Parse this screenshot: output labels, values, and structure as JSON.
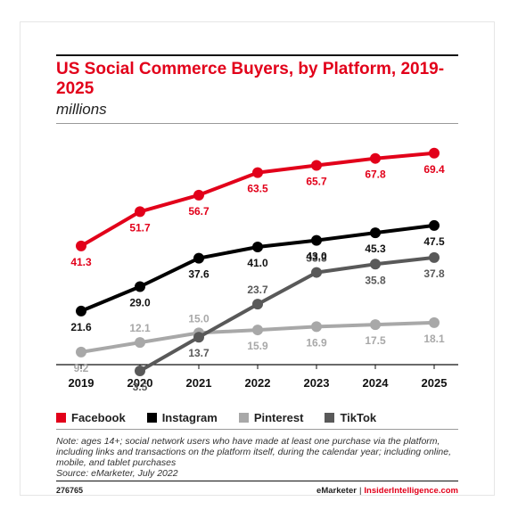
{
  "title": "US Social Commerce Buyers, by Platform, 2019-2025",
  "subtitle": "millions",
  "note": "Note: ages 14+; social network users who have made at least one purchase via the platform, including links and transactions on the platform itself, during the calendar year; including online, mobile, and tablet purchases",
  "source": "Source: eMarketer, July 2022",
  "chart_id": "276765",
  "brand": {
    "emarketer": "eMarketer",
    "separator": "|",
    "insider": "InsiderIntelligence.com"
  },
  "colors": {
    "facebook": "#e2001a",
    "instagram": "#000000",
    "pinterest": "#a8a8a8",
    "tiktok": "#595959"
  },
  "chart_data": {
    "type": "line",
    "title": "US Social Commerce Buyers, by Platform, 2019-2025",
    "subtitle": "millions",
    "x": [
      "2019",
      "2020",
      "2021",
      "2022",
      "2023",
      "2024",
      "2025"
    ],
    "ylim": [
      0,
      75
    ],
    "grid": false,
    "legend_position": "bottom",
    "series": [
      {
        "name": "Facebook",
        "color": "#e2001a",
        "values": [
          41.3,
          51.7,
          56.7,
          63.5,
          65.7,
          67.8,
          69.4
        ],
        "labels": [
          "41.3",
          "51.7",
          "56.7",
          "63.5",
          "65.7",
          "67.8",
          "69.4"
        ]
      },
      {
        "name": "Instagram",
        "color": "#000000",
        "values": [
          21.6,
          29.0,
          37.6,
          41.0,
          43.0,
          45.3,
          47.5
        ],
        "labels": [
          "21.6",
          "29.0",
          "37.6",
          "41.0",
          "43.0",
          "45.3",
          "47.5"
        ]
      },
      {
        "name": "Pinterest",
        "color": "#a8a8a8",
        "values": [
          9.2,
          12.1,
          15.0,
          15.9,
          16.9,
          17.5,
          18.1
        ],
        "labels": [
          "9.2",
          "12.1",
          "15.0",
          "15.9",
          "16.9",
          "17.5",
          "18.1"
        ]
      },
      {
        "name": "TikTok",
        "color": "#595959",
        "values": [
          null,
          3.5,
          13.7,
          23.7,
          33.3,
          35.8,
          37.8
        ],
        "labels": [
          null,
          "3.5",
          "13.7",
          "23.7",
          "33.3",
          "35.8",
          "37.8"
        ]
      }
    ]
  }
}
